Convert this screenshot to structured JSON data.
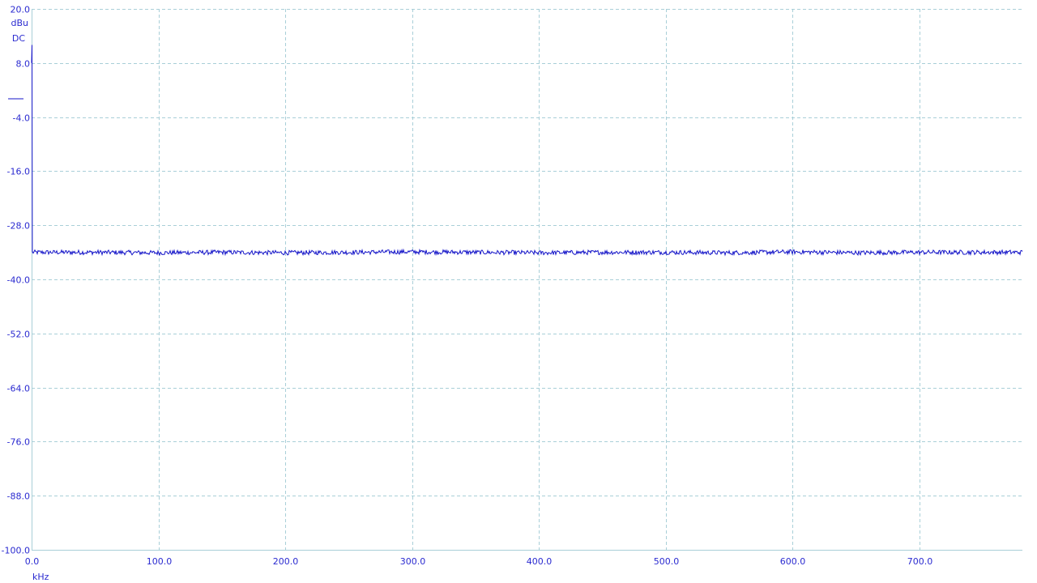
{
  "colors": {
    "background": "#ffffff",
    "grid": "#a9cfd8",
    "trace": "#1414c8",
    "text": "#2a2ad0"
  },
  "chart_data": {
    "type": "line",
    "title": "",
    "xlabel": "kHz",
    "ylabel": "dBu",
    "coupling": "DC",
    "xlim": [
      0,
      781.25
    ],
    "ylim": [
      -100,
      20
    ],
    "grid": true,
    "x_ticks": [
      "0.0",
      "100.0",
      "200.0",
      "300.0",
      "400.0",
      "500.0",
      "600.0",
      "700.0"
    ],
    "y_ticks": [
      "20.0",
      "8.0",
      "-4.0",
      "-16.0",
      "-28.0",
      "-40.0",
      "-52.0",
      "-64.0",
      "-76.0",
      "-88.0",
      "-100.0"
    ],
    "series": [
      {
        "color": "#1414c8",
        "noise_amplitude_db": 0.5,
        "points": [
          [
            0.0,
            8.0
          ],
          [
            0.3,
            12.0
          ],
          [
            0.6,
            -34.0
          ],
          [
            50,
            -34.0
          ],
          [
            100,
            -34.1
          ],
          [
            150,
            -34.0
          ],
          [
            200,
            -34.1
          ],
          [
            250,
            -34.0
          ],
          [
            300,
            -33.9
          ],
          [
            350,
            -34.0
          ],
          [
            400,
            -34.1
          ],
          [
            450,
            -34.0
          ],
          [
            500,
            -34.0
          ],
          [
            550,
            -34.1
          ],
          [
            600,
            -33.9
          ],
          [
            650,
            -34.1
          ],
          [
            700,
            -34.0
          ],
          [
            750,
            -34.0
          ],
          [
            781.25,
            -34.0
          ]
        ]
      }
    ]
  }
}
